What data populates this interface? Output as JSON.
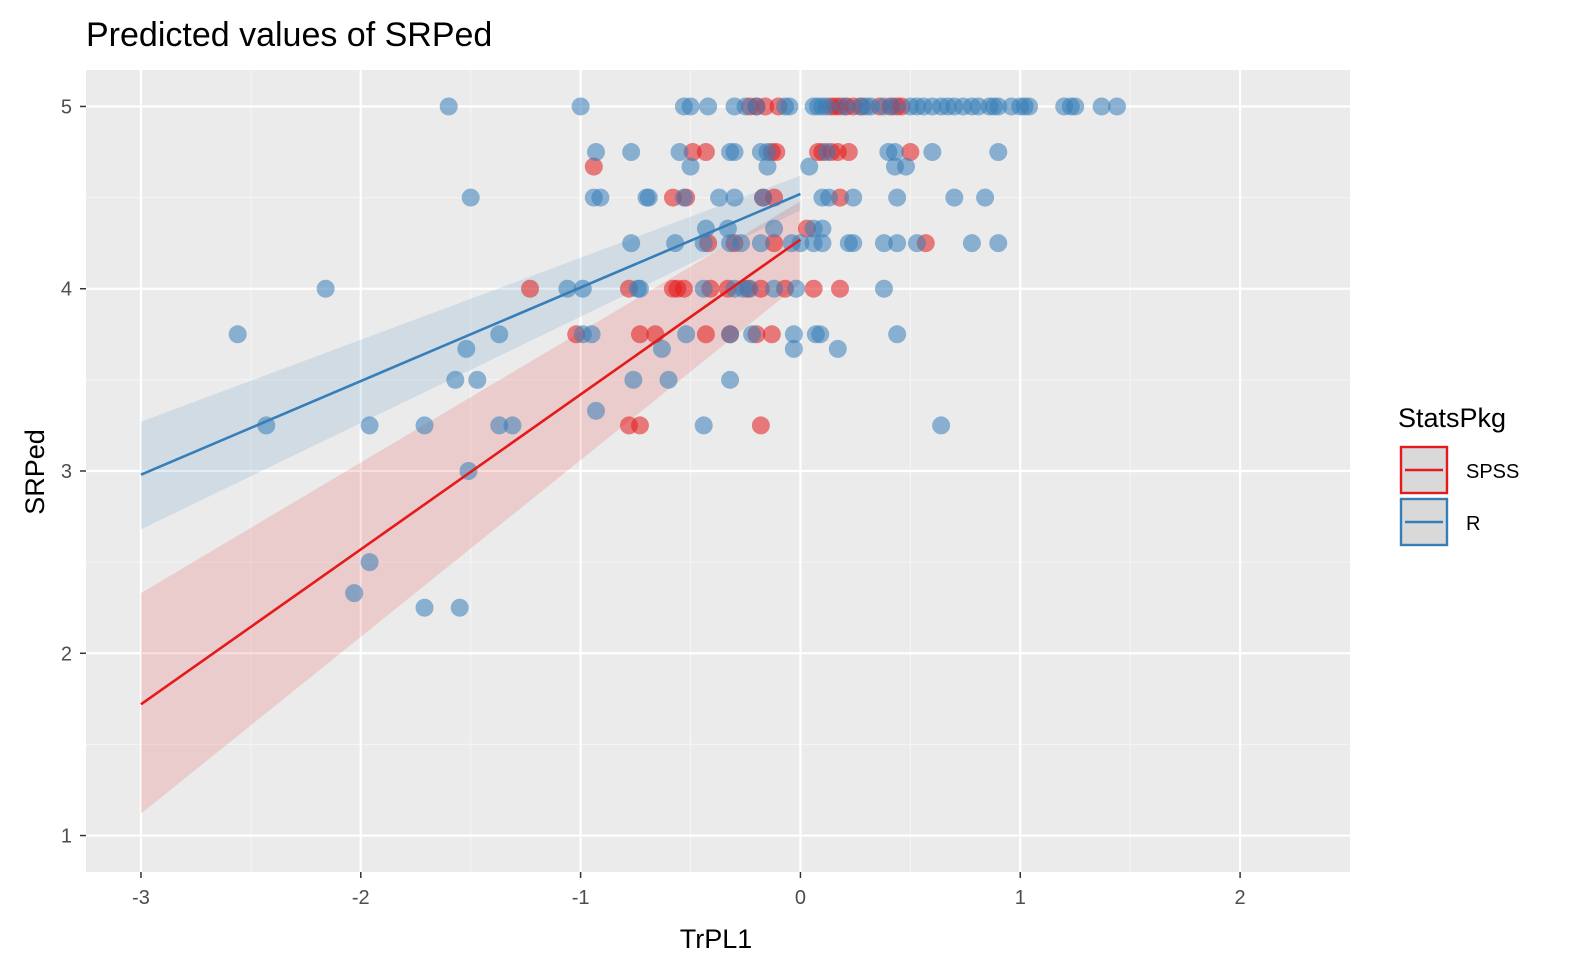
{
  "chart_data": {
    "type": "scatter",
    "title": "Predicted values of SRPed",
    "xlabel": "TrPL1",
    "ylabel": "SRPed",
    "xlim": [
      -3.25,
      2.5
    ],
    "ylim": [
      0.8,
      5.2
    ],
    "x_ticks": [
      -3,
      -2,
      -1,
      0,
      1,
      2
    ],
    "y_ticks": [
      1,
      2,
      3,
      4,
      5
    ],
    "x_tick_labels": [
      "-3",
      "-2",
      "-1",
      "0",
      "1",
      "2"
    ],
    "y_tick_labels": [
      "1",
      "2",
      "3",
      "4",
      "5"
    ],
    "grid": true,
    "legend": {
      "title": "StatsPkg",
      "position": "right"
    },
    "series": [
      {
        "name": "SPSS",
        "color": "#E41A1C",
        "points": [
          [
            -0.23,
            5.0
          ],
          [
            -0.2,
            5.0
          ],
          [
            -0.16,
            5.0
          ],
          [
            -0.1,
            5.0
          ],
          [
            0.14,
            5.0
          ],
          [
            0.16,
            5.0
          ],
          [
            0.18,
            5.0
          ],
          [
            0.21,
            5.0
          ],
          [
            0.24,
            5.0
          ],
          [
            0.28,
            5.0
          ],
          [
            0.36,
            5.0
          ],
          [
            0.41,
            5.0
          ],
          [
            0.44,
            5.0
          ],
          [
            0.46,
            5.0
          ],
          [
            -0.94,
            4.67
          ],
          [
            -0.49,
            4.75
          ],
          [
            -0.43,
            4.75
          ],
          [
            -0.13,
            4.75
          ],
          [
            -0.11,
            4.75
          ],
          [
            0.08,
            4.75
          ],
          [
            0.1,
            4.75
          ],
          [
            0.14,
            4.75
          ],
          [
            0.17,
            4.75
          ],
          [
            0.22,
            4.75
          ],
          [
            0.5,
            4.75
          ],
          [
            -0.58,
            4.5
          ],
          [
            -0.52,
            4.5
          ],
          [
            -0.17,
            4.5
          ],
          [
            -0.12,
            4.5
          ],
          [
            0.18,
            4.5
          ],
          [
            -0.42,
            4.25
          ],
          [
            -0.3,
            4.25
          ],
          [
            -0.12,
            4.25
          ],
          [
            0.03,
            4.33
          ],
          [
            0.57,
            4.25
          ],
          [
            -1.23,
            4.0
          ],
          [
            -0.78,
            4.0
          ],
          [
            -0.58,
            4.0
          ],
          [
            -0.56,
            4.0
          ],
          [
            -0.53,
            4.0
          ],
          [
            -0.41,
            4.0
          ],
          [
            -0.33,
            4.0
          ],
          [
            -0.24,
            4.0
          ],
          [
            -0.18,
            4.0
          ],
          [
            -0.07,
            4.0
          ],
          [
            0.06,
            4.0
          ],
          [
            0.18,
            4.0
          ],
          [
            -1.02,
            3.75
          ],
          [
            -0.73,
            3.75
          ],
          [
            -0.66,
            3.75
          ],
          [
            -0.43,
            3.75
          ],
          [
            -0.32,
            3.75
          ],
          [
            -0.2,
            3.75
          ],
          [
            -0.13,
            3.75
          ],
          [
            -0.78,
            3.25
          ],
          [
            -0.73,
            3.25
          ],
          [
            -0.18,
            3.25
          ]
        ]
      },
      {
        "name": "R",
        "color": "#377EB8",
        "points": [
          [
            -1.6,
            5.0
          ],
          [
            -1.0,
            5.0
          ],
          [
            -0.53,
            5.0
          ],
          [
            -0.5,
            5.0
          ],
          [
            -0.42,
            5.0
          ],
          [
            -0.3,
            5.0
          ],
          [
            -0.25,
            5.0
          ],
          [
            -0.2,
            5.0
          ],
          [
            -0.07,
            5.0
          ],
          [
            -0.05,
            5.0
          ],
          [
            0.06,
            5.0
          ],
          [
            0.08,
            5.0
          ],
          [
            0.1,
            5.0
          ],
          [
            0.12,
            5.0
          ],
          [
            0.2,
            5.0
          ],
          [
            0.27,
            5.0
          ],
          [
            0.3,
            5.0
          ],
          [
            0.32,
            5.0
          ],
          [
            0.38,
            5.0
          ],
          [
            0.42,
            5.0
          ],
          [
            0.5,
            5.0
          ],
          [
            0.53,
            5.0
          ],
          [
            0.56,
            5.0
          ],
          [
            0.6,
            5.0
          ],
          [
            0.64,
            5.0
          ],
          [
            0.67,
            5.0
          ],
          [
            0.7,
            5.0
          ],
          [
            0.74,
            5.0
          ],
          [
            0.78,
            5.0
          ],
          [
            0.81,
            5.0
          ],
          [
            0.86,
            5.0
          ],
          [
            0.88,
            5.0
          ],
          [
            0.9,
            5.0
          ],
          [
            0.96,
            5.0
          ],
          [
            1.0,
            5.0
          ],
          [
            1.02,
            5.0
          ],
          [
            1.04,
            5.0
          ],
          [
            1.2,
            5.0
          ],
          [
            1.23,
            5.0
          ],
          [
            1.25,
            5.0
          ],
          [
            1.37,
            5.0
          ],
          [
            1.44,
            5.0
          ],
          [
            -0.93,
            4.75
          ],
          [
            -0.77,
            4.75
          ],
          [
            -0.55,
            4.75
          ],
          [
            -0.32,
            4.75
          ],
          [
            -0.3,
            4.75
          ],
          [
            -0.18,
            4.75
          ],
          [
            -0.15,
            4.75
          ],
          [
            0.12,
            4.75
          ],
          [
            0.4,
            4.75
          ],
          [
            0.43,
            4.75
          ],
          [
            0.6,
            4.75
          ],
          [
            0.9,
            4.75
          ],
          [
            -0.5,
            4.67
          ],
          [
            -0.15,
            4.67
          ],
          [
            0.04,
            4.67
          ],
          [
            0.43,
            4.67
          ],
          [
            0.48,
            4.67
          ],
          [
            -1.5,
            4.5
          ],
          [
            -0.94,
            4.5
          ],
          [
            -0.91,
            4.5
          ],
          [
            -0.7,
            4.5
          ],
          [
            -0.69,
            4.5
          ],
          [
            -0.53,
            4.5
          ],
          [
            -0.37,
            4.5
          ],
          [
            -0.3,
            4.5
          ],
          [
            -0.17,
            4.5
          ],
          [
            0.1,
            4.5
          ],
          [
            0.13,
            4.5
          ],
          [
            0.24,
            4.5
          ],
          [
            0.44,
            4.5
          ],
          [
            0.7,
            4.5
          ],
          [
            0.84,
            4.5
          ],
          [
            -0.77,
            4.25
          ],
          [
            -0.57,
            4.25
          ],
          [
            -0.44,
            4.25
          ],
          [
            -0.32,
            4.25
          ],
          [
            -0.27,
            4.25
          ],
          [
            -0.18,
            4.25
          ],
          [
            -0.04,
            4.25
          ],
          [
            0.0,
            4.25
          ],
          [
            0.06,
            4.25
          ],
          [
            0.1,
            4.25
          ],
          [
            0.22,
            4.25
          ],
          [
            0.24,
            4.25
          ],
          [
            0.38,
            4.25
          ],
          [
            0.44,
            4.25
          ],
          [
            0.53,
            4.25
          ],
          [
            0.78,
            4.25
          ],
          [
            0.9,
            4.25
          ],
          [
            -0.43,
            4.33
          ],
          [
            -0.33,
            4.33
          ],
          [
            -0.12,
            4.33
          ],
          [
            0.06,
            4.33
          ],
          [
            0.1,
            4.33
          ],
          [
            -2.16,
            4.0
          ],
          [
            -1.06,
            4.0
          ],
          [
            -0.99,
            4.0
          ],
          [
            -0.74,
            4.0
          ],
          [
            -0.73,
            4.0
          ],
          [
            -0.44,
            4.0
          ],
          [
            -0.3,
            4.0
          ],
          [
            -0.26,
            4.0
          ],
          [
            -0.23,
            4.0
          ],
          [
            -0.12,
            4.0
          ],
          [
            -0.02,
            4.0
          ],
          [
            0.38,
            4.0
          ],
          [
            -2.56,
            3.75
          ],
          [
            -1.37,
            3.75
          ],
          [
            -0.99,
            3.75
          ],
          [
            -0.95,
            3.75
          ],
          [
            -0.52,
            3.75
          ],
          [
            -0.32,
            3.75
          ],
          [
            -0.22,
            3.75
          ],
          [
            -0.03,
            3.75
          ],
          [
            0.07,
            3.75
          ],
          [
            0.09,
            3.75
          ],
          [
            0.44,
            3.75
          ],
          [
            -1.52,
            3.67
          ],
          [
            -0.63,
            3.67
          ],
          [
            -0.03,
            3.67
          ],
          [
            0.17,
            3.67
          ],
          [
            -1.57,
            3.5
          ],
          [
            -1.47,
            3.5
          ],
          [
            -0.76,
            3.5
          ],
          [
            -0.6,
            3.5
          ],
          [
            -0.32,
            3.5
          ],
          [
            -2.43,
            3.25
          ],
          [
            -1.96,
            3.25
          ],
          [
            -1.71,
            3.25
          ],
          [
            -1.37,
            3.25
          ],
          [
            -1.31,
            3.25
          ],
          [
            -0.44,
            3.25
          ],
          [
            0.64,
            3.25
          ],
          [
            -0.93,
            3.33
          ],
          [
            -1.51,
            3.0
          ],
          [
            -1.96,
            2.5
          ],
          [
            -2.03,
            2.33
          ],
          [
            -1.71,
            2.25
          ],
          [
            -1.55,
            2.25
          ]
        ]
      }
    ],
    "fits": [
      {
        "name": "SPSS",
        "x": [
          -3,
          0
        ],
        "y": [
          1.72,
          4.27
        ],
        "ci_lower": [
          1.12,
          4.03
        ],
        "ci_upper": [
          2.33,
          4.48
        ]
      },
      {
        "name": "R",
        "x": [
          -3,
          0
        ],
        "y": [
          2.98,
          4.52
        ],
        "ci_lower": [
          2.68,
          4.43
        ],
        "ci_upper": [
          3.27,
          4.62
        ]
      }
    ]
  }
}
